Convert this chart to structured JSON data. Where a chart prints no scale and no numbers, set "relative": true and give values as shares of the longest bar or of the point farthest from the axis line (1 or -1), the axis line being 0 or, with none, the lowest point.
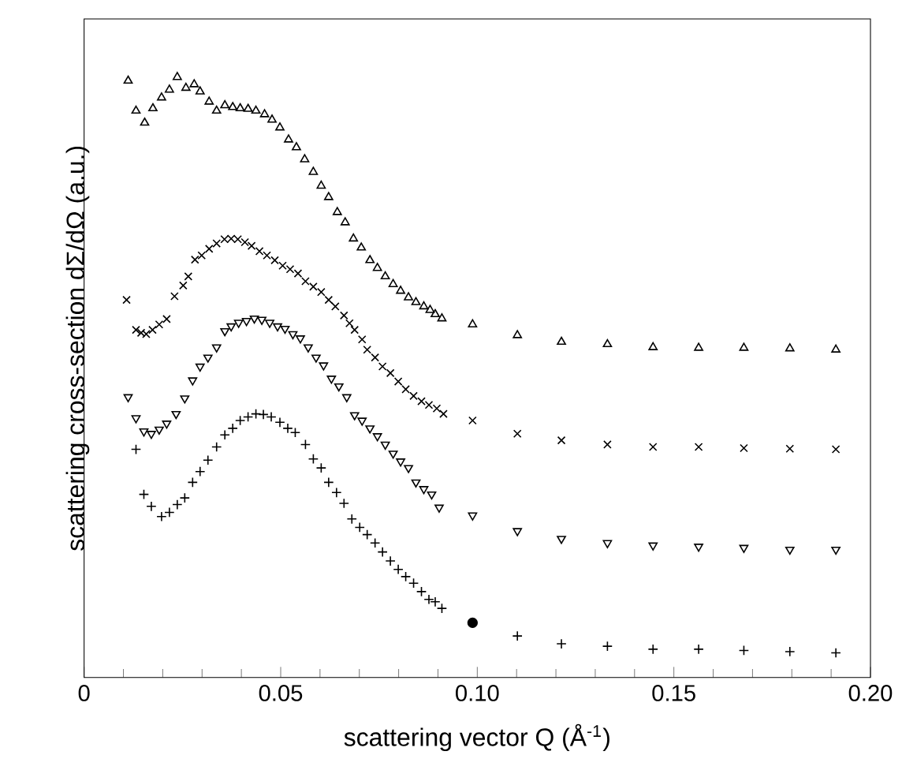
{
  "chart_data": {
    "type": "scatter",
    "relative": true,
    "xlabel": "scattering vector Q (Å$^{-1}$)",
    "ylabel": "scattering cross-section dΣ/dΩ (a.u.)",
    "xlim": [
      0,
      0.2
    ],
    "xticks": [
      0,
      0.05,
      {
        "value": 0.1,
        "label": "0.10"
      },
      0.15,
      {
        "value": 0.2,
        "label": "0.20"
      }
    ],
    "tick_labels": "x",
    "series": [
      {
        "color": "#000000",
        "marker": "triangle",
        "x": [
          0.0112,
          0.0132,
          0.0154,
          0.0175,
          0.0197,
          0.0217,
          0.0237,
          0.0259,
          0.028,
          0.0295,
          0.0318,
          0.0337,
          0.0358,
          0.0378,
          0.0397,
          0.0417,
          0.0437,
          0.0459,
          0.0478,
          0.0498,
          0.052,
          0.054,
          0.0561,
          0.0583,
          0.0603,
          0.0622,
          0.0644,
          0.0664,
          0.0685,
          0.0705,
          0.0727,
          0.0746,
          0.0766,
          0.0786,
          0.0805,
          0.0825,
          0.0844,
          0.0864,
          0.088,
          0.0893,
          0.091,
          0.0988,
          0.1102,
          0.1214,
          0.1331,
          0.1447,
          0.1563,
          0.1678,
          0.1795,
          0.1912
        ],
        "values": [
          0.994,
          0.944,
          0.924,
          0.948,
          0.966,
          0.979,
          1.0,
          0.982,
          0.988,
          0.976,
          0.959,
          0.944,
          0.953,
          0.95,
          0.948,
          0.947,
          0.944,
          0.938,
          0.929,
          0.916,
          0.896,
          0.883,
          0.863,
          0.842,
          0.819,
          0.8,
          0.775,
          0.758,
          0.731,
          0.716,
          0.695,
          0.682,
          0.668,
          0.655,
          0.644,
          0.633,
          0.625,
          0.618,
          0.612,
          0.605,
          0.598,
          0.588,
          0.57,
          0.559,
          0.555,
          0.55,
          0.549,
          0.549,
          0.548,
          0.546
        ]
      },
      {
        "color": "#000000",
        "marker": "cross",
        "x": [
          0.0108,
          0.0132,
          0.0145,
          0.0158,
          0.0174,
          0.0191,
          0.021,
          0.023,
          0.0252,
          0.0265,
          0.0282,
          0.0299,
          0.0318,
          0.0337,
          0.0357,
          0.0374,
          0.0391,
          0.0409,
          0.0426,
          0.0446,
          0.0465,
          0.0485,
          0.0505,
          0.0524,
          0.0544,
          0.0563,
          0.0583,
          0.0603,
          0.0622,
          0.0639,
          0.0661,
          0.0675,
          0.0688,
          0.0707,
          0.072,
          0.074,
          0.0759,
          0.0779,
          0.0799,
          0.0818,
          0.0838,
          0.0858,
          0.0877,
          0.0897,
          0.0914,
          0.0988,
          0.1102,
          0.1214,
          0.1331,
          0.1447,
          0.1563,
          0.1678,
          0.1795,
          0.1912
        ],
        "values": [
          0.629,
          0.579,
          0.574,
          0.572,
          0.579,
          0.588,
          0.597,
          0.635,
          0.653,
          0.668,
          0.696,
          0.703,
          0.714,
          0.723,
          0.73,
          0.731,
          0.73,
          0.725,
          0.719,
          0.71,
          0.703,
          0.695,
          0.686,
          0.68,
          0.673,
          0.66,
          0.651,
          0.642,
          0.629,
          0.618,
          0.603,
          0.59,
          0.579,
          0.563,
          0.546,
          0.533,
          0.518,
          0.507,
          0.493,
          0.48,
          0.469,
          0.46,
          0.454,
          0.448,
          0.439,
          0.428,
          0.406,
          0.395,
          0.388,
          0.384,
          0.384,
          0.382,
          0.381,
          0.38
        ]
      },
      {
        "color": "#000000",
        "marker": "triangle down",
        "x": [
          0.0112,
          0.0132,
          0.0152,
          0.0171,
          0.0191,
          0.021,
          0.0234,
          0.0256,
          0.0276,
          0.0295,
          0.0315,
          0.0337,
          0.0358,
          0.0374,
          0.0393,
          0.0413,
          0.0433,
          0.0452,
          0.0472,
          0.0492,
          0.0511,
          0.0531,
          0.055,
          0.057,
          0.059,
          0.0609,
          0.0629,
          0.0648,
          0.0668,
          0.0688,
          0.0707,
          0.0727,
          0.0746,
          0.0766,
          0.0786,
          0.0805,
          0.0825,
          0.0844,
          0.0864,
          0.0884,
          0.0903,
          0.0988,
          0.1102,
          0.1214,
          0.1331,
          0.1447,
          0.1563,
          0.1678,
          0.1795,
          0.1912
        ],
        "values": [
          0.467,
          0.432,
          0.41,
          0.406,
          0.413,
          0.423,
          0.439,
          0.465,
          0.495,
          0.518,
          0.533,
          0.55,
          0.577,
          0.585,
          0.591,
          0.594,
          0.598,
          0.596,
          0.591,
          0.585,
          0.581,
          0.572,
          0.565,
          0.55,
          0.533,
          0.52,
          0.498,
          0.485,
          0.467,
          0.437,
          0.428,
          0.415,
          0.402,
          0.388,
          0.373,
          0.36,
          0.349,
          0.325,
          0.314,
          0.305,
          0.283,
          0.27,
          0.244,
          0.231,
          0.224,
          0.22,
          0.218,
          0.216,
          0.213,
          0.213
        ]
      },
      {
        "color": "#000000",
        "marker": "plus",
        "x": [
          0.0132,
          0.0152,
          0.0171,
          0.0197,
          0.0217,
          0.0237,
          0.0256,
          0.0276,
          0.0295,
          0.0315,
          0.0337,
          0.0358,
          0.0378,
          0.0397,
          0.0417,
          0.0437,
          0.0456,
          0.0476,
          0.0498,
          0.0518,
          0.0537,
          0.0563,
          0.0583,
          0.0603,
          0.0622,
          0.0642,
          0.0661,
          0.0681,
          0.0701,
          0.072,
          0.074,
          0.0759,
          0.0779,
          0.0799,
          0.0818,
          0.0838,
          0.0858,
          0.0877,
          0.0893,
          0.091,
          0.1102,
          0.1214,
          0.1331,
          0.1447,
          0.1563,
          0.1678,
          0.1795,
          0.1912
        ],
        "values": [
          0.38,
          0.305,
          0.285,
          0.268,
          0.275,
          0.288,
          0.299,
          0.325,
          0.343,
          0.362,
          0.384,
          0.404,
          0.415,
          0.428,
          0.434,
          0.439,
          0.438,
          0.434,
          0.425,
          0.415,
          0.408,
          0.388,
          0.364,
          0.349,
          0.325,
          0.308,
          0.29,
          0.264,
          0.25,
          0.238,
          0.224,
          0.209,
          0.194,
          0.18,
          0.168,
          0.157,
          0.143,
          0.13,
          0.126,
          0.115,
          0.069,
          0.056,
          0.052,
          0.047,
          0.047,
          0.045,
          0.043,
          0.041
        ]
      },
      {
        "color": "#000000",
        "marker": "circle",
        "x": [
          0.0988
        ],
        "values": [
          0.091
        ]
      }
    ]
  }
}
